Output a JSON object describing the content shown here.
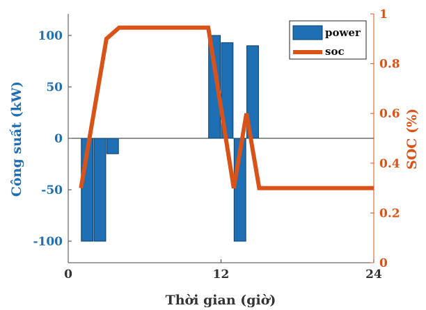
{
  "chart_data": {
    "type": "bar",
    "xlabel": "Thời gian (giờ)",
    "ylabel_left": "Công suất (kW)",
    "ylabel_right": "SOC (%)",
    "xlim": [
      0,
      24
    ],
    "ylim_left": [
      -120,
      120
    ],
    "ylim_right": [
      0,
      1
    ],
    "x_ticks": [
      "0",
      "12",
      "24"
    ],
    "y_left_ticks": [
      "100",
      "50",
      "0",
      "-50",
      "-100"
    ],
    "y_right_ticks": [
      "1",
      "0.8",
      "0.6",
      "0.4",
      "0.2",
      "0"
    ],
    "legend": {
      "position": "top-right",
      "entries": [
        "power",
        "soc"
      ]
    },
    "colors": {
      "power": "#1f6fb4",
      "soc": "#d95319",
      "left_axis": "#1f6fb4",
      "right_axis": "#d95319"
    },
    "series": [
      {
        "name": "power",
        "type": "bar",
        "axis": "left",
        "x": [
          1,
          2,
          3,
          11,
          12,
          13,
          14
        ],
        "values": [
          -100,
          -100,
          -15,
          100,
          93,
          -100,
          90
        ]
      },
      {
        "name": "soc",
        "type": "line",
        "axis": "right",
        "x": [
          1,
          3,
          4,
          11,
          13,
          14,
          15,
          24
        ],
        "values": [
          0.3,
          0.9,
          0.945,
          0.945,
          0.3,
          0.6,
          0.3,
          0.3
        ]
      }
    ]
  }
}
